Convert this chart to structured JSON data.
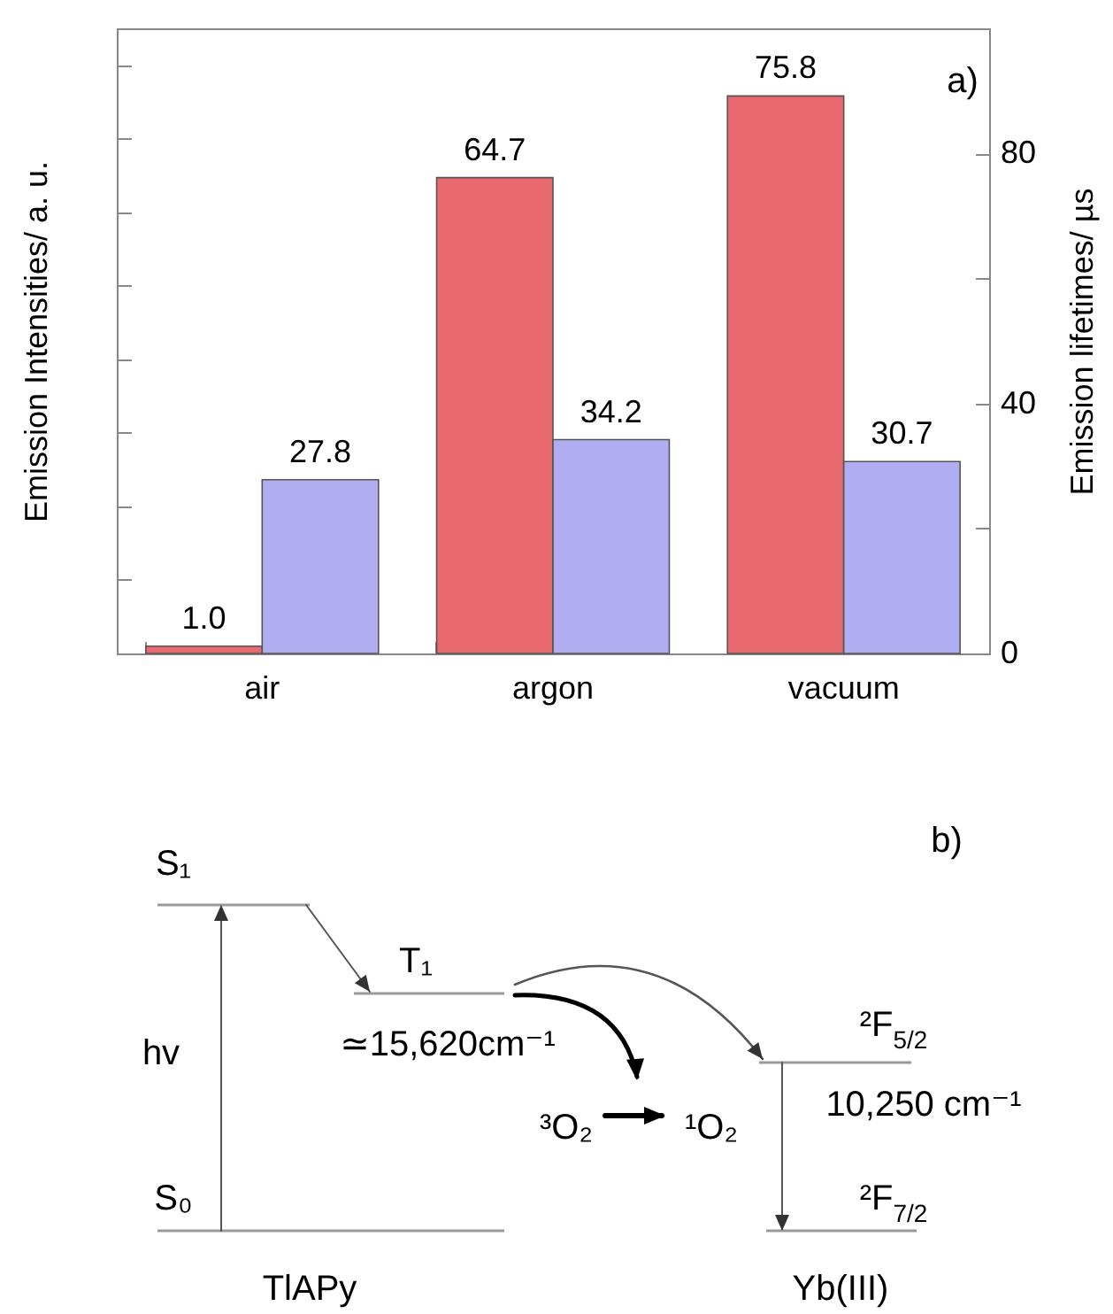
{
  "chart_data": [
    {
      "type": "bar",
      "categories": [
        "air",
        "argon",
        "vacuum"
      ],
      "series": [
        {
          "color": "#e8696e",
          "axis": "y",
          "values": [
            1.0,
            64.7,
            75.8
          ],
          "value_labels": [
            "1.0",
            "64.7",
            "75.8"
          ]
        },
        {
          "color": "#b0aef0",
          "axis": "y2",
          "values": [
            27.8,
            34.2,
            30.7
          ],
          "value_labels": [
            "27.8",
            "34.2",
            "30.7"
          ]
        }
      ],
      "ylabel": "Emission Intensities/ a. u.",
      "y2label": "Emission lifetimes/ µs",
      "ylim": [
        0,
        85
      ],
      "yticks": [
        {
          "value": 10,
          "label": null
        },
        {
          "value": 20,
          "label": null
        },
        {
          "value": 30,
          "label": null
        },
        {
          "value": 40,
          "label": null
        },
        {
          "value": 50,
          "label": null
        },
        {
          "value": 60,
          "label": null
        },
        {
          "value": 70,
          "label": null
        },
        {
          "value": 80,
          "label": null
        }
      ],
      "y2lim": [
        0,
        100
      ],
      "y2ticks": [
        0,
        {
          "value": 20,
          "label": null
        },
        40,
        {
          "value": 60,
          "label": null
        },
        80
      ],
      "annotations": [
        "a)"
      ]
    },
    {
      "type": "other",
      "annotations": [
        "b)",
        "S₁",
        "T₁",
        "hv",
        "≃15,620cm⁻¹",
        "³O₂",
        "¹O₂",
        "²F$_{5/2}$",
        "10,250 cm⁻¹",
        "²F$_{7/2}$",
        "S₀",
        "TlAPy",
        "Yb(III)"
      ]
    }
  ]
}
